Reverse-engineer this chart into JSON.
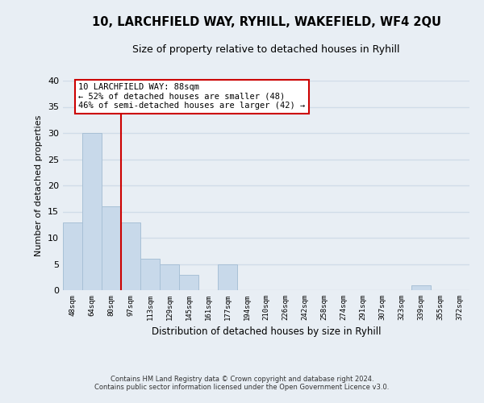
{
  "title": "10, LARCHFIELD WAY, RYHILL, WAKEFIELD, WF4 2QU",
  "subtitle": "Size of property relative to detached houses in Ryhill",
  "xlabel": "Distribution of detached houses by size in Ryhill",
  "ylabel": "Number of detached properties",
  "bar_labels": [
    "48sqm",
    "64sqm",
    "80sqm",
    "97sqm",
    "113sqm",
    "129sqm",
    "145sqm",
    "161sqm",
    "177sqm",
    "194sqm",
    "210sqm",
    "226sqm",
    "242sqm",
    "258sqm",
    "274sqm",
    "291sqm",
    "307sqm",
    "323sqm",
    "339sqm",
    "355sqm",
    "372sqm"
  ],
  "bar_values": [
    13,
    30,
    16,
    13,
    6,
    5,
    3,
    0,
    5,
    0,
    0,
    0,
    0,
    0,
    0,
    0,
    0,
    0,
    1,
    0,
    0
  ],
  "bar_color": "#c8d9ea",
  "bar_edge_color": "#a8c0d6",
  "vline_x": 2.5,
  "vline_color": "#cc0000",
  "ylim": [
    0,
    40
  ],
  "yticks": [
    0,
    5,
    10,
    15,
    20,
    25,
    30,
    35,
    40
  ],
  "annotation_title": "10 LARCHFIELD WAY: 88sqm",
  "annotation_line1": "← 52% of detached houses are smaller (48)",
  "annotation_line2": "46% of semi-detached houses are larger (42) →",
  "annotation_box_facecolor": "#ffffff",
  "annotation_box_edgecolor": "#cc0000",
  "footer1": "Contains HM Land Registry data © Crown copyright and database right 2024.",
  "footer2": "Contains public sector information licensed under the Open Government Licence v3.0.",
  "background_color": "#e8eef4",
  "grid_color": "#d0dce8",
  "title_fontsize": 10.5,
  "subtitle_fontsize": 9
}
